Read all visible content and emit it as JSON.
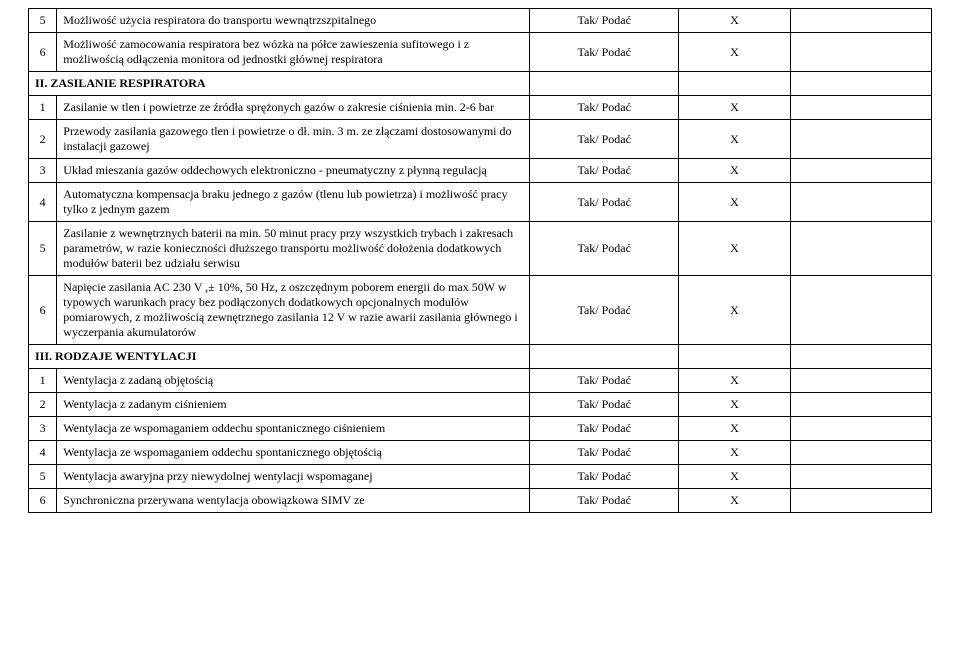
{
  "typography": {
    "font_family": "Times New Roman",
    "body_fontsize_pt": 9,
    "color": "#000000",
    "border_color": "#000000",
    "background": "#ffffff"
  },
  "common": {
    "req_label": "Tak/ Podać",
    "mark_x": "X"
  },
  "rows": [
    {
      "kind": "item",
      "n": "5",
      "desc": "Możliwość użycia respiratora do transportu wewnątrzszpitalnego",
      "req": true,
      "mark": true
    },
    {
      "kind": "item",
      "n": "6",
      "desc": "Możliwość zamocowania respiratora bez wózka na półce zawieszenia sufitowego i z możliwością odłączenia monitora od jednostki głównej respiratora",
      "req": true,
      "mark": true
    },
    {
      "kind": "section",
      "label": "II. ZASILANIE RESPIRATORA"
    },
    {
      "kind": "item",
      "n": "1",
      "desc": "Zasilanie w tlen i powietrze ze źródła sprężonych gazów o zakresie ciśnienia min. 2-6 bar",
      "req": true,
      "mark": true
    },
    {
      "kind": "item",
      "n": "2",
      "desc": "Przewody zasilania gazowego tlen i powietrze o dł. min. 3 m. ze złączami dostosowanymi do instalacji gazowej",
      "req": true,
      "mark": true
    },
    {
      "kind": "item",
      "n": "3",
      "desc": "Układ mieszania gazów oddechowych elektroniczno - pneumatyczny z płynną regulacją",
      "req": true,
      "mark": true
    },
    {
      "kind": "item",
      "n": "4",
      "desc": "Automatyczna kompensacja braku jednego z gazów (tlenu lub powietrza) i możliwość pracy tylko z jednym gazem",
      "req": true,
      "mark": true
    },
    {
      "kind": "item",
      "n": "5",
      "desc": "Zasilanie z wewnętrznych baterii na min. 50 minut pracy przy wszystkich trybach i zakresach parametrów, w razie konieczności dłuższego transportu możliwość dołożenia dodatkowych modułów baterii bez udziału serwisu",
      "req": true,
      "mark": true
    },
    {
      "kind": "item",
      "n": "6",
      "desc": "Napięcie zasilania AC 230 V ,± 10%, 50 Hz, z oszczędnym poborem energii do max 50W w typowych warunkach pracy bez podłączonych dodatkowych opcjonalnych modułów pomiarowych, z możliwością zewnętrznego zasilania 12 V w razie awarii zasilania głównego i wyczerpania akumulatorów",
      "req": true,
      "mark": true
    },
    {
      "kind": "section",
      "label": "III. RODZAJE WENTYLACJI"
    },
    {
      "kind": "item",
      "n": "1",
      "desc": "Wentylacja z zadaną objętością",
      "req": true,
      "mark": true
    },
    {
      "kind": "item",
      "n": "2",
      "desc": "Wentylacja z zadanym ciśnieniem",
      "req": true,
      "mark": true
    },
    {
      "kind": "item",
      "n": "3",
      "desc": "Wentylacja ze wspomaganiem oddechu spontanicznego ciśnieniem",
      "req": true,
      "mark": true
    },
    {
      "kind": "item",
      "n": "4",
      "desc": "Wentylacja ze wspomaganiem oddechu spontanicznego objętością",
      "req": true,
      "mark": true
    },
    {
      "kind": "item",
      "n": "5",
      "desc": "Wentylacja awaryjna przy niewydolnej wentylacji wspomaganej",
      "req": true,
      "mark": true
    },
    {
      "kind": "item",
      "n": "6",
      "desc": "Synchroniczna przerywana wentylacja obowiązkowa SIMV ze",
      "req": true,
      "mark": true
    }
  ]
}
